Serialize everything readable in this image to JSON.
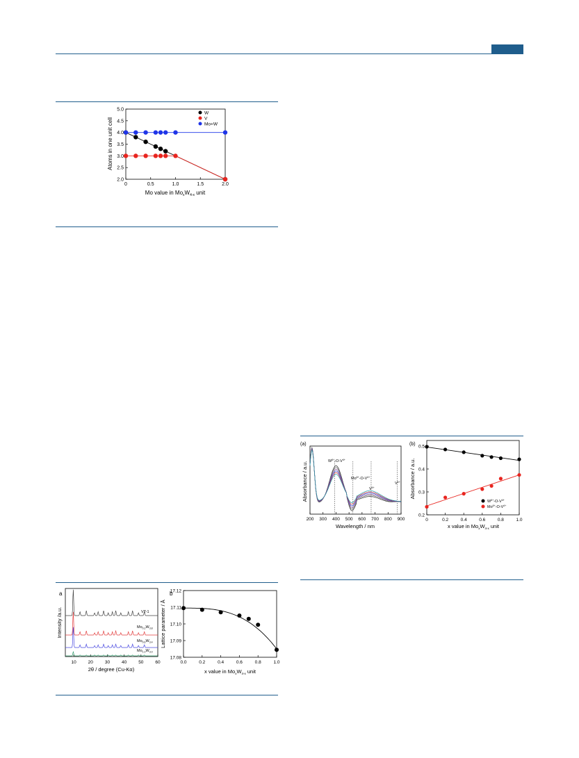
{
  "colors": {
    "accent": "#1f5d8c",
    "black": "#000000",
    "red": "#e8251f",
    "blue": "#1f35e8"
  },
  "fig_top": {
    "ylabel": "Atoms in one unit cell",
    "xlabel_pre": "Mo value in Mo",
    "xlabel_sub1": "x",
    "xlabel_mid": "W",
    "xlabel_sub2": "4-x",
    "xlabel_post": " unit",
    "yticks": [
      "2.0",
      "2.5",
      "3.0",
      "3.5",
      "4.0",
      "4.5",
      "5.0"
    ],
    "xticks": [
      "0",
      "0.5",
      "1.0",
      "1.5",
      "2.0"
    ],
    "legend": [
      "W",
      "V",
      "Mo+W"
    ]
  },
  "fig_uv": {
    "panel_a": "(a)",
    "panel_b": "(b)",
    "a_ylabel": "Absorbance / a.u.",
    "a_xlabel": "Wavelength / nm",
    "a_xticks": [
      "200",
      "300",
      "400",
      "500",
      "600",
      "700",
      "800",
      "900"
    ],
    "ann1_main": "W",
    "ann1_sup1": "6+",
    "ann1_mid": "-O-V",
    "ann1_sup2": "4+",
    "ann2_main": "Mo",
    "ann2_sup1": "6+",
    "ann2_mid": "-O-V",
    "ann2_sup2": "4+",
    "ann3_main": "V",
    "ann3_sup": "4+",
    "ann4_main": "V",
    "ann4_sup": "4+",
    "b_ylabel": "Absorbance / a.u.",
    "b_xlabel_pre": "x value in Mo",
    "b_xlabel_sub1": "x",
    "b_xlabel_mid": "W",
    "b_xlabel_sub2": "4-x",
    "b_xlabel_post": " unit",
    "b_yticks": [
      "0.2",
      "0.3",
      "0.4",
      "0.5"
    ],
    "b_xticks": [
      "0",
      "0.2",
      "0.4",
      "0.6",
      "0.8",
      "1.0"
    ],
    "leg1_main": "W",
    "leg1_sup1": "6+",
    "leg1_mid": "-O-V",
    "leg1_sup2": "4+",
    "leg2_main": "Mo",
    "leg2_sup1": "6+",
    "leg2_mid": "-O-V",
    "leg2_sup2": "4+"
  },
  "fig_xrd": {
    "panel_a": "a",
    "panel_b": "b",
    "a_ylabel": "Intensity /a.u.",
    "a_xlabel": "2θ / degree (Cu-Kα)",
    "a_xticks": [
      "10",
      "20",
      "30",
      "40",
      "50",
      "60"
    ],
    "labels": [
      {
        "main": "VT-1",
        "sub": "",
        "post": ""
      },
      {
        "main": "Mo",
        "sub": "0.2",
        "mid": "W",
        "sub2": "3.8"
      },
      {
        "main": "Mo",
        "sub": "0.6",
        "mid": "W",
        "sub2": "3.4"
      },
      {
        "main": "Mo",
        "sub": "1.0",
        "mid": "W",
        "sub2": "3.0"
      }
    ],
    "b_ylabel": "Lattice parameter / Å",
    "b_yticks": [
      "17.08",
      "17.09",
      "17.10",
      "17.11",
      "17.12"
    ],
    "b_xticks": [
      "0.0",
      "0.2",
      "0.4",
      "0.6",
      "0.8",
      "1.0"
    ],
    "b_xlabel_pre": "x value in Mo",
    "b_xlabel_sub1": "x",
    "b_xlabel_mid": "W",
    "b_xlabel_sub2": "4-x",
    "b_xlabel_post": " unit"
  },
  "chart_data": [
    {
      "type": "line",
      "series": [
        {
          "name": "W",
          "x": [
            0,
            0.2,
            0.4,
            0.6,
            0.7,
            0.8,
            2.0
          ],
          "y": [
            4.0,
            3.8,
            3.6,
            3.4,
            3.3,
            3.2,
            2.0
          ]
        },
        {
          "name": "V",
          "x": [
            0,
            0.2,
            0.4,
            0.6,
            0.7,
            0.8,
            1.0,
            2.0
          ],
          "y": [
            3.0,
            3.0,
            3.0,
            3.0,
            3.0,
            3.0,
            3.0,
            2.0
          ]
        },
        {
          "name": "Mo+W",
          "x": [
            0,
            0.2,
            0.4,
            0.6,
            0.7,
            0.8,
            1.0,
            2.0
          ],
          "y": [
            4.0,
            4.0,
            4.0,
            4.0,
            4.0,
            4.0,
            4.0,
            4.0
          ]
        }
      ],
      "xlim": [
        0,
        2.0
      ],
      "ylim": [
        2.0,
        5.0
      ],
      "legend": "top-right"
    },
    {
      "type": "line",
      "xlim": [
        200,
        900
      ],
      "vlines": [
        390,
        530,
        670,
        870
      ],
      "curves": 6
    },
    {
      "type": "scatter",
      "series": [
        {
          "name": "W6+-O-V4+",
          "x": [
            0,
            0.2,
            0.4,
            0.6,
            0.7,
            0.8,
            1.0
          ],
          "y": [
            0.497,
            0.485,
            0.473,
            0.458,
            0.452,
            0.447,
            0.442
          ]
        },
        {
          "name": "Mo6+-O-V4+",
          "x": [
            0,
            0.2,
            0.4,
            0.6,
            0.7,
            0.8,
            1.0
          ],
          "y": [
            0.235,
            0.276,
            0.292,
            0.312,
            0.326,
            0.358,
            0.374
          ]
        }
      ],
      "xlim": [
        0,
        1.0
      ],
      "ylim": [
        0.2,
        0.5
      ],
      "legend": "bottom-right"
    },
    {
      "type": "line",
      "xlim": [
        5,
        60
      ],
      "peaks": [
        9.7,
        13.7,
        17.5,
        22.4,
        24.5,
        27.8,
        30.5,
        33.0,
        35.0,
        38.0,
        42.5,
        45.0,
        48.5,
        52.0
      ]
    },
    {
      "type": "scatter",
      "x": [
        0.0,
        0.2,
        0.4,
        0.6,
        0.7,
        0.8,
        1.0
      ],
      "y": [
        17.1095,
        17.1085,
        17.107,
        17.105,
        17.103,
        17.0995,
        17.0845
      ],
      "xlim": [
        0,
        1.0
      ],
      "ylim": [
        17.08,
        17.12
      ]
    }
  ]
}
